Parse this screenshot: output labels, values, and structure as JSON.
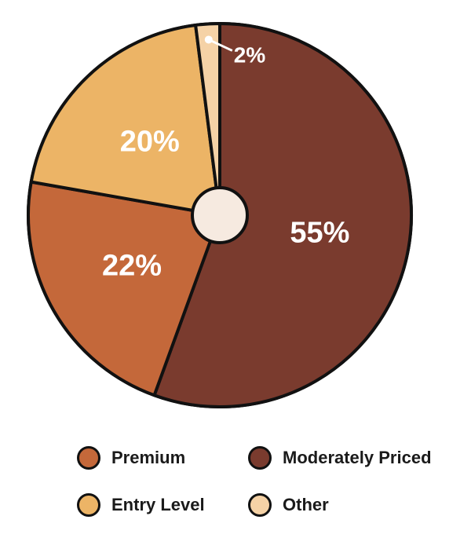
{
  "chart_data": {
    "type": "pie",
    "title": "",
    "slices": [
      {
        "name": "Moderately Priced",
        "value": 55,
        "label": "55%",
        "color": "#7a3b2e"
      },
      {
        "name": "Premium",
        "value": 22,
        "label": "22%",
        "color": "#c4683a"
      },
      {
        "name": "Entry Level",
        "value": 20,
        "label": "20%",
        "color": "#ecb466"
      },
      {
        "name": "Other",
        "value": 2,
        "label": "2%",
        "color": "#f5d2a6"
      }
    ],
    "center_hole_color": "#f6eae0",
    "outline_color": "#111111",
    "label_color": "#ffffff",
    "legend_position": "bottom"
  },
  "legend": {
    "items": [
      {
        "label": "Premium",
        "color": "#c4683a"
      },
      {
        "label": "Moderately Priced",
        "color": "#7a3b2e"
      },
      {
        "label": "Entry Level",
        "color": "#ecb466"
      },
      {
        "label": "Other",
        "color": "#f5d2a6"
      }
    ]
  }
}
